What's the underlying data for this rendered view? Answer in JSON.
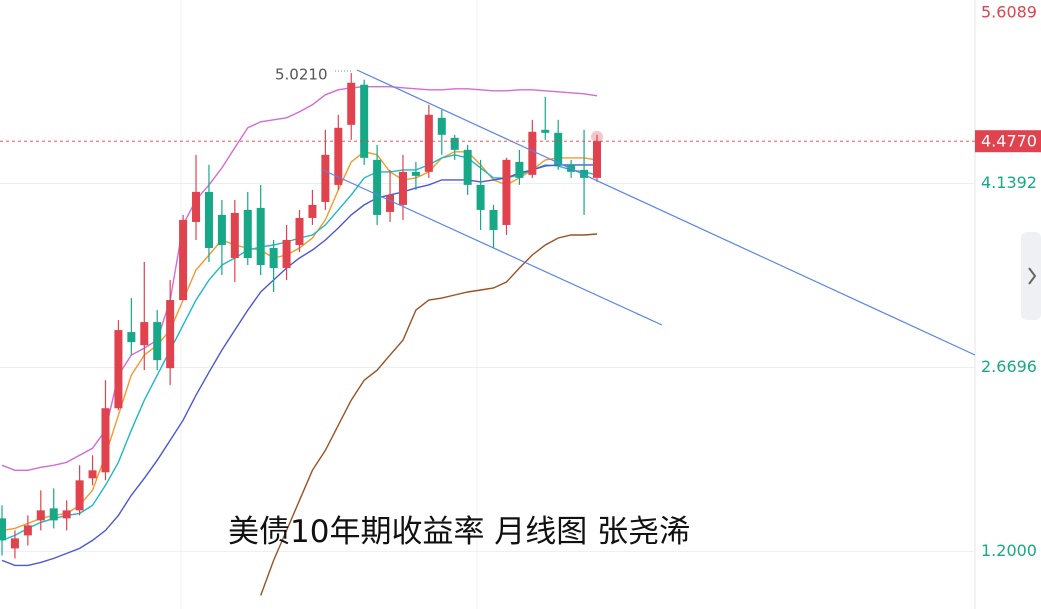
{
  "chart_data": {
    "type": "candlestick",
    "title": "美债10年期收益率 月线图 张尧浠",
    "annotation": "5.0210",
    "last_price": {
      "value": 4.477,
      "label": "4.4770"
    },
    "ylim": [
      0.74,
      5.605
    ],
    "yticks": [
      5.6089,
      4.1392,
      2.6696,
      {
        "value": 1.2,
        "label": "1.2000"
      }
    ],
    "grid": true,
    "up_color": "#e0424e",
    "down_color": "#17a887",
    "open": [
      1.464,
      1.224,
      1.328,
      1.448,
      1.544,
      1.464,
      1.528,
      1.784,
      1.832,
      2.344,
      2.952,
      2.848,
      3.032,
      2.664,
      3.208,
      3.832,
      4.072,
      3.888,
      3.544,
      3.928,
      3.944,
      3.624,
      3.464,
      3.648,
      3.864,
      3.992,
      4.128,
      4.608,
      4.928,
      4.328,
      3.912,
      3.968,
      4.232,
      4.232,
      4.664,
      4.504,
      4.408,
      4.128,
      3.928,
      3.808,
      4.312,
      4.208,
      4.568,
      4.544,
      4.288,
      4.248,
      4.184
    ],
    "high": [
      1.568,
      1.368,
      1.488,
      1.688,
      1.704,
      1.608,
      1.888,
      1.968,
      2.568,
      3.048,
      3.224,
      3.512,
      3.128,
      3.368,
      3.888,
      4.368,
      4.288,
      4.008,
      4.008,
      4.072,
      4.128,
      3.688,
      3.808,
      3.928,
      4.088,
      4.568,
      4.688,
      5.021,
      4.968,
      4.448,
      4.248,
      4.368,
      4.312,
      4.768,
      4.728,
      4.528,
      4.448,
      4.328,
      3.968,
      4.344,
      4.408,
      4.648,
      4.832,
      4.648,
      4.328,
      4.568,
      4.528
    ],
    "low": [
      1.168,
      1.144,
      1.248,
      1.368,
      1.384,
      1.368,
      1.488,
      1.728,
      1.768,
      2.328,
      2.768,
      2.648,
      2.648,
      2.528,
      3.208,
      3.688,
      3.512,
      3.408,
      3.352,
      3.488,
      3.408,
      3.272,
      3.368,
      3.592,
      3.808,
      3.928,
      4.088,
      4.488,
      4.288,
      3.808,
      3.832,
      3.848,
      4.088,
      4.184,
      4.368,
      4.328,
      4.048,
      3.768,
      3.624,
      3.728,
      4.128,
      4.184,
      4.488,
      4.248,
      4.184,
      3.888,
      4.152
    ],
    "close": [
      1.288,
      1.304,
      1.408,
      1.528,
      1.448,
      1.528,
      1.768,
      1.848,
      2.344,
      2.968,
      2.872,
      3.032,
      2.728,
      3.208,
      3.848,
      4.072,
      3.624,
      3.648,
      3.904,
      3.544,
      3.488,
      3.464,
      3.688,
      3.864,
      3.968,
      4.368,
      4.584,
      4.944,
      4.344,
      3.888,
      4.048,
      4.232,
      4.2,
      4.688,
      4.528,
      4.408,
      4.128,
      3.928,
      3.768,
      4.328,
      4.184,
      4.552,
      4.544,
      4.288,
      4.232,
      4.184,
      4.477
    ],
    "series": [
      {
        "color": "#d36cd3",
        "values": [
          1.888,
          1.848,
          1.848,
          1.872,
          1.888,
          1.912,
          1.968,
          2.024,
          2.168,
          2.608,
          2.768,
          2.824,
          2.888,
          3.208,
          3.808,
          4.008,
          4.128,
          4.264,
          4.424,
          4.584,
          4.632,
          4.648,
          4.664,
          4.712,
          4.768,
          4.848,
          4.888,
          4.904,
          4.912,
          4.912,
          4.912,
          4.904,
          4.896,
          4.888,
          4.888,
          4.896,
          4.896,
          4.888,
          4.88,
          4.88,
          4.888,
          4.888,
          4.88,
          4.872,
          4.864,
          4.856,
          4.84
        ]
      },
      {
        "color": "#f39a2e",
        "values": [
          1.368,
          1.384,
          1.424,
          1.464,
          1.488,
          1.504,
          1.568,
          1.688,
          1.968,
          2.288,
          2.608,
          2.768,
          2.848,
          2.968,
          3.208,
          3.448,
          3.568,
          3.688,
          3.648,
          3.624,
          3.608,
          3.544,
          3.568,
          3.624,
          3.704,
          3.848,
          4.088,
          4.312,
          4.392,
          4.368,
          4.232,
          4.168,
          4.184,
          4.232,
          4.344,
          4.392,
          4.392,
          4.288,
          4.168,
          4.128,
          4.184,
          4.248,
          4.328,
          4.344,
          4.344,
          4.344,
          4.328
        ]
      },
      {
        "color": "#1fb8c9",
        "values": [
          1.288,
          1.328,
          1.384,
          1.432,
          1.464,
          1.488,
          1.504,
          1.568,
          1.728,
          1.912,
          2.168,
          2.408,
          2.608,
          2.808,
          3.008,
          3.208,
          3.368,
          3.488,
          3.544,
          3.608,
          3.632,
          3.648,
          3.672,
          3.704,
          3.728,
          3.808,
          3.928,
          4.048,
          4.184,
          4.232,
          4.232,
          4.248,
          4.248,
          4.288,
          4.344,
          4.368,
          4.344,
          4.264,
          4.184,
          4.184,
          4.208,
          4.248,
          4.288,
          4.28,
          4.248,
          4.232,
          4.208
        ]
      },
      {
        "color": "#4b57d6",
        "values": [
          1.128,
          1.088,
          1.088,
          1.112,
          1.144,
          1.184,
          1.224,
          1.288,
          1.368,
          1.488,
          1.648,
          1.784,
          1.928,
          2.088,
          2.248,
          2.448,
          2.632,
          2.808,
          2.968,
          3.128,
          3.272,
          3.368,
          3.464,
          3.544,
          3.608,
          3.688,
          3.784,
          3.888,
          3.968,
          4.024,
          4.048,
          4.072,
          4.104,
          4.128,
          4.168,
          4.168,
          4.168,
          4.152,
          4.168,
          4.184,
          4.224,
          4.248,
          4.28,
          4.288,
          4.288,
          4.288,
          4.288
        ]
      },
      {
        "color": "#9a5224",
        "values": [
          null,
          null,
          null,
          null,
          null,
          null,
          null,
          null,
          null,
          null,
          null,
          null,
          null,
          null,
          null,
          null,
          null,
          null,
          null,
          null,
          0.848,
          1.128,
          1.368,
          1.608,
          1.848,
          2.008,
          2.208,
          2.408,
          2.568,
          2.648,
          2.768,
          2.888,
          3.128,
          3.208,
          3.224,
          3.248,
          3.272,
          3.288,
          3.304,
          3.352,
          3.464,
          3.568,
          3.648,
          3.704,
          3.728,
          3.728,
          3.736
        ]
      }
    ]
  }
}
